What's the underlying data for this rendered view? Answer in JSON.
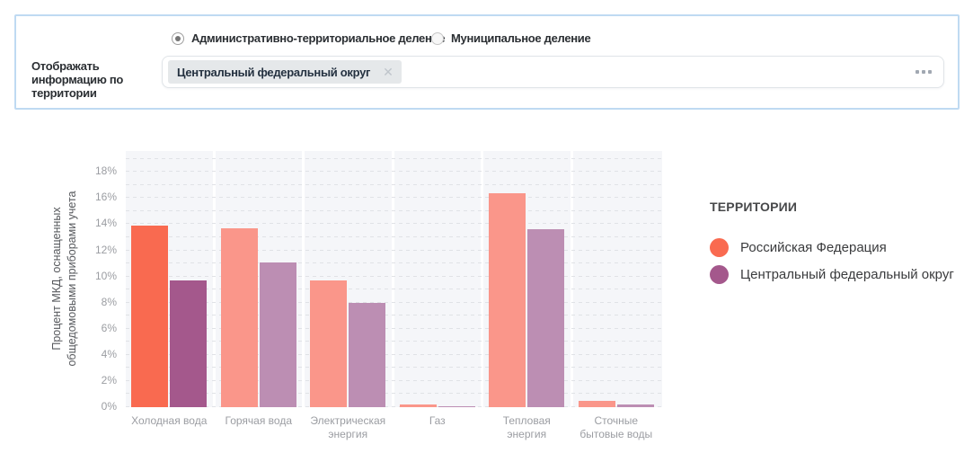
{
  "panel": {
    "radios": [
      {
        "label": "Административно-территориальное деление",
        "selected": true
      },
      {
        "label": "Муниципальное деление",
        "selected": false
      }
    ],
    "field_label": "Отображать информацию по территории",
    "chip": {
      "label": "Центральный федеральный округ"
    }
  },
  "icons": {
    "chip_close": "✕",
    "more_options": "ellipsis-dots"
  },
  "chart_data": {
    "type": "bar",
    "title": "",
    "ylabel": "Процент МКД, оснащенных общедомовыми приборами учета",
    "ylabel_lines": [
      "Процент МКД, оснащенных",
      "общедомовыми приборами учета"
    ],
    "categories": [
      "Холодная вода",
      "Горячая вода",
      "Электрическая энергия",
      "Газ",
      "Тепловая энергия",
      "Сточные бытовые воды"
    ],
    "series": [
      {
        "name": "Российская Федерация",
        "color": "#f96a50",
        "color_muted": "#fa968a",
        "values": [
          13.9,
          13.7,
          9.7,
          0.2,
          16.4,
          0.5
        ]
      },
      {
        "name": "Центральный федеральный округ",
        "color": "#a4588c",
        "color_muted": "#bc8eb3",
        "values": [
          9.7,
          11.1,
          8.0,
          0.1,
          13.6,
          0.2
        ]
      }
    ],
    "highlighted_category_index": 0,
    "ylim": [
      0,
      19.6
    ],
    "yticks_percent": [
      0,
      2,
      4,
      6,
      8,
      10,
      12,
      14,
      16,
      18
    ],
    "grid": "horizontal-dashed-1pct",
    "legend_title": "ТЕРРИТОРИИ",
    "legend_position": "right"
  }
}
